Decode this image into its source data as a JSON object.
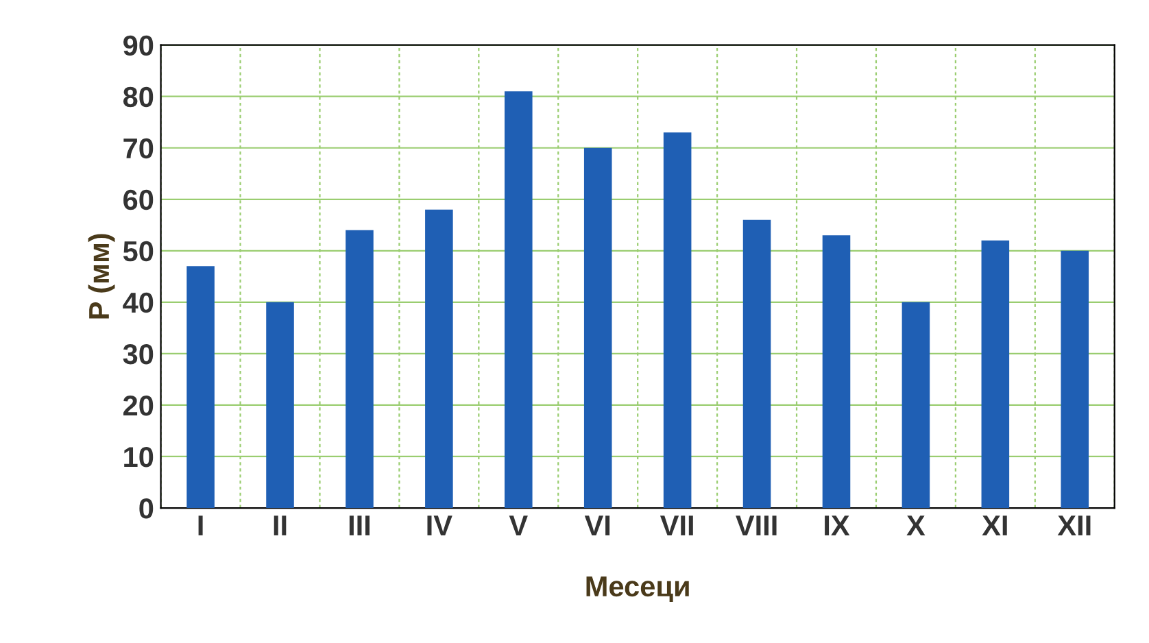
{
  "chart_data": {
    "type": "bar",
    "xlabel": "Месеци",
    "ylabel": "P (мм)",
    "categories": [
      "I",
      "II",
      "III",
      "IV",
      "V",
      "VI",
      "VII",
      "VIII",
      "IX",
      "X",
      "XI",
      "XII"
    ],
    "values": [
      47,
      40,
      54,
      58,
      81,
      70,
      73,
      56,
      53,
      40,
      52,
      50
    ],
    "color": "#1f5fb4",
    "ylim": [
      0,
      90
    ],
    "yticks": [
      0,
      10,
      20,
      30,
      40,
      50,
      60,
      70,
      80,
      90
    ],
    "grid": true
  }
}
